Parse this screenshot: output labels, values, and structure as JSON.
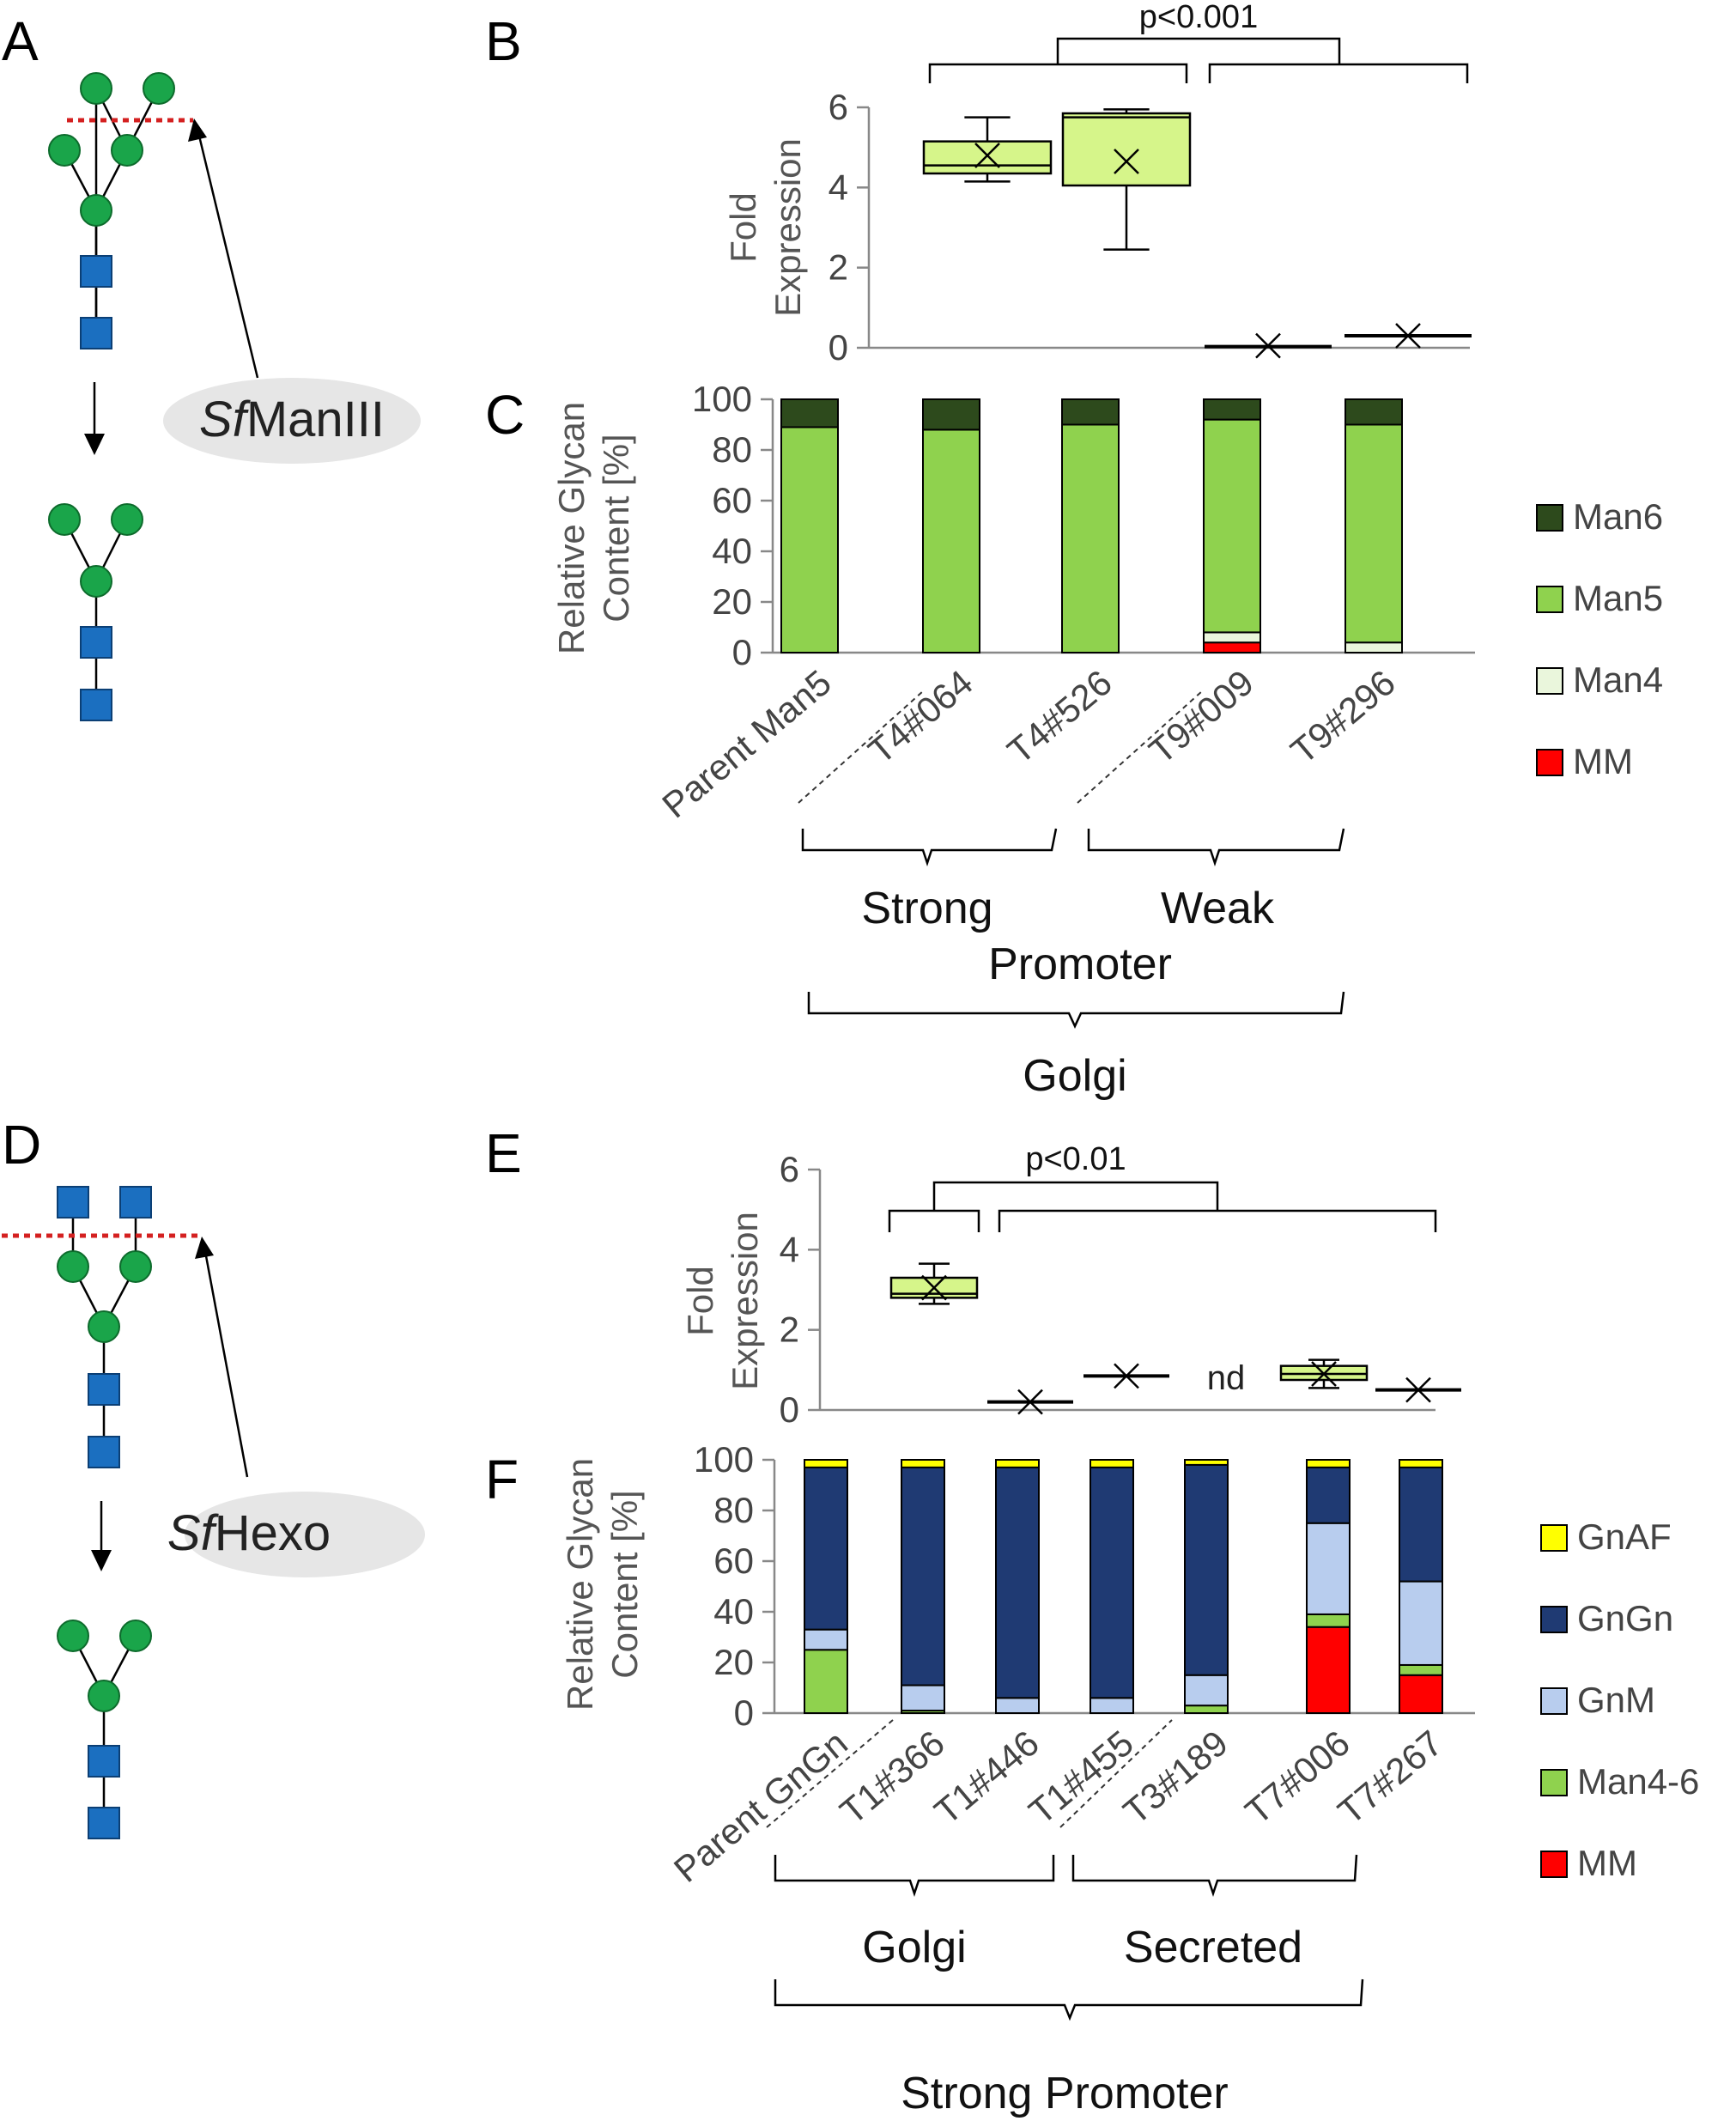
{
  "panels": {
    "A": "A",
    "B": "B",
    "C": "C",
    "D": "D",
    "E": "E",
    "F": "F"
  },
  "enzymes": {
    "top": {
      "italic": "Sf",
      "rest": "ManIII"
    },
    "bottom": {
      "italic": "Sf",
      "rest": "Hexo"
    }
  },
  "colors": {
    "mannose": "#1aa54a",
    "glcnac": "#1b6fc0",
    "cleave": "#d42020",
    "box_fill": "#d6f58a",
    "Man6": "#2d4a1c",
    "Man5": "#8fd24e",
    "Man4": "#eaf6dc",
    "MM": "#ff0000",
    "GnAF": "#ffff00",
    "GnGn": "#1f3a73",
    "GnM": "#b8cdee",
    "Man4_6": "#8fd24e"
  },
  "annotations": {
    "pB": "p<0.001",
    "pE": "p<0.01",
    "nd": "nd"
  },
  "groups": {
    "C": {
      "g1": "Strong",
      "g2": "Weak",
      "g3": "Promoter",
      "g4": "Golgi"
    },
    "F": {
      "g1": "Golgi",
      "g2": "Secreted",
      "g3": "Strong Promoter"
    }
  },
  "chart_data": [
    {
      "id": "B",
      "type": "box",
      "ylabel": "Fold Expression",
      "ylabel_lines": [
        "Fold",
        "Expression"
      ],
      "ylim": [
        0,
        6
      ],
      "yticks": [
        0,
        2,
        4,
        6
      ],
      "categories": [
        "T4#064",
        "T4#526",
        "T9#009",
        "T9#296"
      ],
      "boxes": [
        {
          "min": 4.15,
          "q1": 4.35,
          "median": 4.55,
          "q3": 5.15,
          "max": 5.75,
          "mean": 4.8
        },
        {
          "min": 2.45,
          "q1": 4.05,
          "median": 5.75,
          "q3": 5.85,
          "max": 5.95,
          "mean": 4.65
        },
        {
          "min": 0.03,
          "q1": 0.03,
          "median": 0.03,
          "q3": 0.03,
          "max": 0.03,
          "mean": 0.05
        },
        {
          "min": 0.3,
          "q1": 0.3,
          "median": 0.3,
          "q3": 0.3,
          "max": 0.3,
          "mean": 0.3
        }
      ]
    },
    {
      "id": "C",
      "type": "stacked_bar",
      "ylabel": "Relative Glycan Content [%]",
      "ylabel_lines": [
        "Relative Glycan",
        "Content [%]"
      ],
      "ylim": [
        0,
        100
      ],
      "yticks": [
        0,
        20,
        40,
        60,
        80,
        100
      ],
      "categories": [
        "Parent Man5",
        "T4#064",
        "T4#526",
        "T9#009",
        "T9#296"
      ],
      "series": [
        {
          "name": "MM",
          "values": [
            0,
            0,
            0,
            4,
            0
          ]
        },
        {
          "name": "Man4",
          "values": [
            0,
            0,
            0,
            4,
            4
          ]
        },
        {
          "name": "Man5",
          "values": [
            89,
            88,
            90,
            84,
            86
          ]
        },
        {
          "name": "Man6",
          "values": [
            11,
            12,
            10,
            8,
            10
          ]
        }
      ],
      "legend": [
        "Man6",
        "Man5",
        "Man4",
        "MM"
      ]
    },
    {
      "id": "E",
      "type": "box",
      "ylabel": "Fold Expression",
      "ylabel_lines": [
        "Fold",
        "Expression"
      ],
      "ylim": [
        0,
        6
      ],
      "yticks": [
        0,
        2,
        4,
        6
      ],
      "categories": [
        "T1#366",
        "T1#446",
        "T1#455",
        "T3#189",
        "T7#006",
        "T7#267"
      ],
      "boxes": [
        {
          "min": 2.65,
          "q1": 2.8,
          "median": 2.9,
          "q3": 3.3,
          "max": 3.65,
          "mean": 3.05
        },
        {
          "min": 0.2,
          "q1": 0.2,
          "median": 0.2,
          "q3": 0.2,
          "max": 0.2,
          "mean": 0.2
        },
        {
          "min": 0.85,
          "q1": 0.85,
          "median": 0.85,
          "q3": 0.85,
          "max": 0.85,
          "mean": 0.85
        },
        null,
        {
          "min": 0.55,
          "q1": 0.75,
          "median": 0.9,
          "q3": 1.1,
          "max": 1.25,
          "mean": 0.9
        },
        {
          "min": 0.45,
          "q1": 0.45,
          "median": 0.5,
          "q3": 0.5,
          "max": 0.5,
          "mean": 0.5
        }
      ]
    },
    {
      "id": "F",
      "type": "stacked_bar",
      "ylabel": "Relative Glycan Content [%]",
      "ylabel_lines": [
        "Relative Glycan",
        "Content [%]"
      ],
      "ylim": [
        0,
        100
      ],
      "yticks": [
        0,
        20,
        40,
        60,
        80,
        100
      ],
      "categories": [
        "Parent GnGn",
        "T1#366",
        "T1#446",
        "T1#455",
        "T3#189",
        "T7#006",
        "T7#267"
      ],
      "series": [
        {
          "name": "MM",
          "values": [
            0,
            0,
            0,
            0,
            0,
            34,
            15
          ]
        },
        {
          "name": "Man4-6",
          "values": [
            25,
            1,
            0,
            0,
            3,
            5,
            4
          ]
        },
        {
          "name": "GnM",
          "values": [
            8,
            10,
            6,
            6,
            12,
            36,
            33
          ]
        },
        {
          "name": "GnGn",
          "values": [
            64,
            86,
            91,
            91,
            83,
            22,
            45
          ]
        },
        {
          "name": "GnAF",
          "values": [
            3,
            3,
            3,
            3,
            2,
            3,
            3
          ]
        }
      ],
      "legend": [
        "GnAF",
        "GnGn",
        "GnM",
        "Man4-6",
        "MM"
      ]
    }
  ]
}
